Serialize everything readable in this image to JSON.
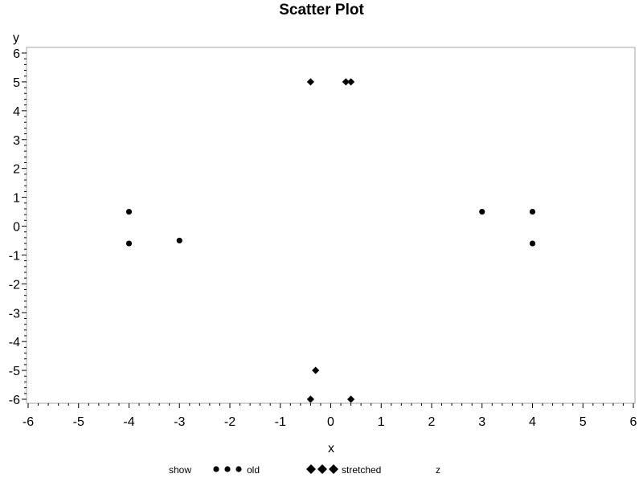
{
  "chart_data": {
    "type": "scatter",
    "title": "Scatter Plot",
    "xlabel": "x",
    "ylabel": "y",
    "xlim": [
      -6,
      6
    ],
    "ylim": [
      -6,
      6
    ],
    "xticks": [
      "-6",
      "-5",
      "-4",
      "-3",
      "-2",
      "-1",
      "0",
      "1",
      "2",
      "3",
      "4",
      "5",
      "6"
    ],
    "yticks": [
      "6",
      "5",
      "4",
      "3",
      "2",
      "1",
      "0",
      "-1",
      "-2",
      "-3",
      "-4",
      "-5",
      "-6"
    ],
    "minor_ticks_per_interval": 5,
    "grid": false,
    "legend_position": "bottom",
    "series": [
      {
        "name": "old",
        "marker": "circle",
        "points": [
          {
            "x": -4,
            "y": 0.5
          },
          {
            "x": -4,
            "y": -0.6
          },
          {
            "x": -3,
            "y": -0.5
          },
          {
            "x": 3,
            "y": 0.5
          },
          {
            "x": 4,
            "y": 0.5
          },
          {
            "x": 4,
            "y": -0.6
          }
        ]
      },
      {
        "name": "stretched",
        "marker": "diamond",
        "points": [
          {
            "x": -0.4,
            "y": 5
          },
          {
            "x": 0.3,
            "y": 5
          },
          {
            "x": 0.4,
            "y": 5
          },
          {
            "x": -0.3,
            "y": -5
          },
          {
            "x": -0.4,
            "y": -6
          },
          {
            "x": 0.4,
            "y": -6
          }
        ]
      },
      {
        "name": "z",
        "marker": "none",
        "points": []
      }
    ],
    "legend": {
      "title": "show",
      "entries": [
        "old",
        "stretched",
        "z"
      ]
    }
  },
  "colors": {
    "marker": "#000000",
    "frame": "#a6a6a6",
    "axis": "#000000"
  }
}
